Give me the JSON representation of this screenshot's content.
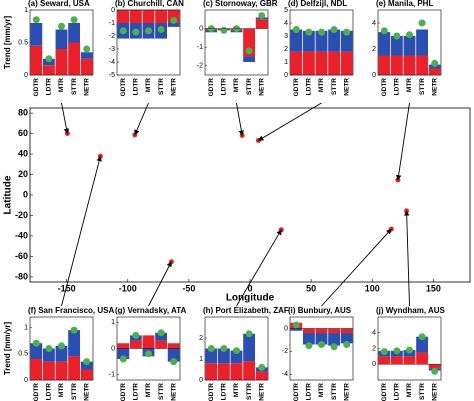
{
  "chart_data": [
    {
      "type": "map",
      "xlabel": "Longitude",
      "ylabel": "Latitude",
      "xlim": [
        -180,
        180
      ],
      "ylim": [
        -85,
        85
      ],
      "xticks": [
        -150,
        -100,
        -50,
        0,
        50,
        100,
        150
      ],
      "yticks": [
        -80,
        -60,
        -40,
        -20,
        0,
        20,
        40,
        60,
        80
      ],
      "x": [
        -149.4,
        -94.2,
        -6.4,
        6.9,
        121.0,
        -122.4,
        -64.3,
        25.6,
        115.6,
        128.1
      ],
      "y": [
        60.1,
        58.8,
        58.2,
        53.3,
        14.6,
        37.8,
        -65.2,
        -34.0,
        -33.3,
        -15.5
      ],
      "color": "#e8212a"
    },
    {
      "type": "bar",
      "title": "(a) Seward, USA",
      "ylabel": "Trend [mm/yr]",
      "categories": [
        "GDTR",
        "LDTR",
        "MTR",
        "STTR",
        "NETR"
      ],
      "ylim": [
        0,
        1
      ],
      "yticks": [
        0,
        0.5,
        1
      ],
      "series": [
        {
          "color": "#e8212a",
          "values": [
            0.45,
            0.15,
            0.4,
            0.5,
            0.25
          ]
        },
        {
          "color": "#2a4fb0",
          "values": [
            0.35,
            0.1,
            0.3,
            0.3,
            0.1
          ]
        }
      ],
      "markers": {
        "color": "#4caf50",
        "values": [
          0.85,
          0.25,
          0.75,
          0.85,
          0.4
        ]
      }
    },
    {
      "type": "bar",
      "title": "(b) Churchill, CAN",
      "categories": [
        "GDTR",
        "LDTR",
        "MTR",
        "STTR",
        "NETR"
      ],
      "ylim": [
        -5,
        0
      ],
      "yticks": [
        -5,
        -4,
        -3,
        -2,
        -1,
        0
      ],
      "series": [
        {
          "color": "#e8212a",
          "values": [
            -1,
            -1,
            -1,
            -1,
            -1
          ]
        },
        {
          "color": "#2a4fb0",
          "values": [
            -1.2,
            -1.2,
            -1.2,
            -1.2,
            -0.3
          ]
        }
      ],
      "markers": {
        "color": "#4caf50",
        "values": [
          -1.6,
          -1.7,
          -1.6,
          -1.5,
          -0.8
        ]
      }
    },
    {
      "type": "bar",
      "title": "(c) Stornoway, GBR",
      "categories": [
        "GDTR",
        "LDTR",
        "MTR",
        "STTR",
        "NETR"
      ],
      "ylim": [
        -2.5,
        1
      ],
      "yticks": [
        -2,
        -1,
        0
      ],
      "series": [
        {
          "color": "#e8212a",
          "values": [
            -0.1,
            -0.05,
            -0.1,
            -1.5,
            0.5
          ]
        },
        {
          "color": "#2a4fb0",
          "values": [
            -0.1,
            -0.05,
            -0.1,
            -0.3,
            0.1
          ]
        }
      ],
      "markers": {
        "color": "#4caf50",
        "values": [
          0,
          -0.1,
          0,
          -1.2,
          0.7
        ]
      }
    },
    {
      "type": "bar",
      "title": "(d) Delfzijl, NDL",
      "categories": [
        "GDTR",
        "LDTR",
        "MTR",
        "STTR",
        "NETR"
      ],
      "ylim": [
        0,
        5
      ],
      "yticks": [
        0,
        1,
        2,
        3,
        4,
        5
      ],
      "series": [
        {
          "color": "#e8212a",
          "values": [
            1.8,
            1.8,
            1.8,
            1.8,
            1.8
          ]
        },
        {
          "color": "#2a4fb0",
          "values": [
            1.7,
            1.6,
            1.6,
            1.7,
            1.6
          ]
        }
      ],
      "markers": {
        "color": "#4caf50",
        "values": [
          3.5,
          3.3,
          3.3,
          3.5,
          3.3
        ]
      }
    },
    {
      "type": "bar",
      "title": "(e) Manila, PHL",
      "categories": [
        "GDTR",
        "LDTR",
        "MTR",
        "STTR",
        "NETR"
      ],
      "ylim": [
        0,
        5
      ],
      "yticks": [
        0,
        2,
        4
      ],
      "series": [
        {
          "color": "#e8212a",
          "values": [
            1.5,
            1.5,
            1.5,
            1.5,
            0.5
          ]
        },
        {
          "color": "#2a4fb0",
          "values": [
            1.8,
            1.5,
            1.5,
            2,
            0.3
          ]
        }
      ],
      "markers": {
        "color": "#4caf50",
        "values": [
          3.4,
          3.0,
          3.1,
          4.0,
          0.9
        ]
      }
    },
    {
      "type": "bar",
      "title": "(f) San Francisco, USA",
      "ylabel": "Trend [mm/yr]",
      "categories": [
        "GDTR",
        "LDTR",
        "MTR",
        "STTR",
        "NETR"
      ],
      "ylim": [
        0,
        1.2
      ],
      "yticks": [
        0,
        0.5,
        1
      ],
      "series": [
        {
          "color": "#e8212a",
          "values": [
            0.4,
            0.35,
            0.35,
            0.45,
            0.2
          ]
        },
        {
          "color": "#2a4fb0",
          "values": [
            0.3,
            0.25,
            0.3,
            0.5,
            0.15
          ]
        }
      ],
      "markers": {
        "color": "#4caf50",
        "values": [
          0.7,
          0.6,
          0.65,
          0.95,
          0.35
        ]
      }
    },
    {
      "type": "bar",
      "title": "(g) Vernadsky, ATA",
      "categories": [
        "GDTR",
        "LDTR",
        "MTR",
        "STTR",
        "NETR"
      ],
      "ylim": [
        -1.2,
        1.2
      ],
      "yticks": [
        -1,
        0,
        1
      ],
      "series": [
        {
          "color": "#e8212a",
          "values": [
            0.2,
            0.3,
            0.5,
            0.3,
            0.2
          ]
        },
        {
          "color": "#2a4fb0",
          "values": [
            -0.4,
            0.2,
            -0.3,
            0.3,
            -0.5
          ]
        }
      ],
      "markers": {
        "color": "#4caf50",
        "values": [
          -0.4,
          0.5,
          -0.2,
          0.6,
          -0.5
        ]
      }
    },
    {
      "type": "bar",
      "title": "(h) Port Elizabeth, ZAF",
      "categories": [
        "GDTR",
        "LDTR",
        "MTR",
        "STTR",
        "NETR"
      ],
      "ylim": [
        0,
        3
      ],
      "yticks": [
        0,
        1,
        2
      ],
      "series": [
        {
          "color": "#e8212a",
          "values": [
            0.8,
            0.8,
            0.8,
            0.9,
            0.4
          ]
        },
        {
          "color": "#2a4fb0",
          "values": [
            0.7,
            0.7,
            0.6,
            1.3,
            0.2
          ]
        }
      ],
      "markers": {
        "color": "#4caf50",
        "values": [
          1.5,
          1.5,
          1.4,
          2.2,
          0.6
        ]
      }
    },
    {
      "type": "bar",
      "title": "(i) Bunbury, AUS",
      "categories": [
        "GDTR",
        "LDTR",
        "MTR",
        "STTR",
        "NETR"
      ],
      "ylim": [
        -4.5,
        1
      ],
      "yticks": [
        -4,
        -2,
        0
      ],
      "series": [
        {
          "color": "#e8212a",
          "values": [
            0.5,
            -0.4,
            -0.4,
            -0.4,
            -0.4
          ]
        },
        {
          "color": "#2a4fb0",
          "values": [
            -0.2,
            -1,
            -1,
            -1.1,
            -0.9
          ]
        }
      ],
      "markers": {
        "color": "#4caf50",
        "values": [
          0.3,
          -1.5,
          -1.4,
          -1.6,
          -1.4
        ]
      }
    },
    {
      "type": "bar",
      "title": "(j) Wyndham, AUS",
      "categories": [
        "GDTR",
        "LDTR",
        "MTR",
        "STTR",
        "NETR"
      ],
      "ylim": [
        -2,
        6
      ],
      "yticks": [
        0,
        2,
        4
      ],
      "series": [
        {
          "color": "#e8212a",
          "values": [
            1,
            1,
            1,
            1.5,
            -0.5
          ]
        },
        {
          "color": "#2a4fb0",
          "values": [
            0.7,
            0.7,
            0.8,
            2,
            -0.3
          ]
        }
      ],
      "markers": {
        "color": "#4caf50",
        "values": [
          1.6,
          1.7,
          1.8,
          3.5,
          -0.9
        ]
      }
    }
  ]
}
